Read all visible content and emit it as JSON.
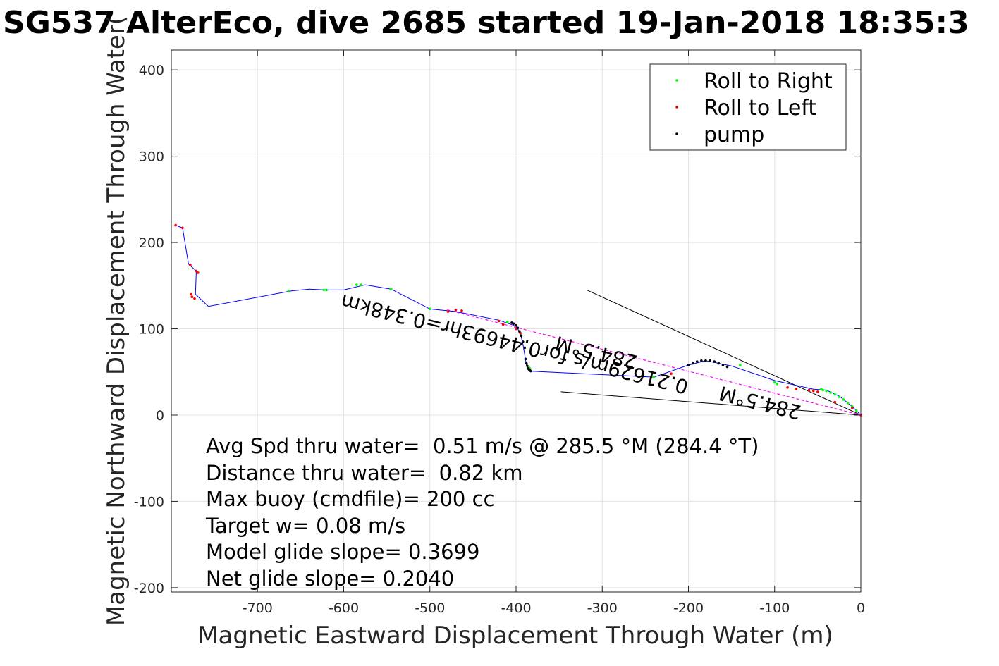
{
  "chart_data": {
    "type": "scatter",
    "title": "SG537 AlterEco, dive 2685 started 19-Jan-2018 18:35:3",
    "xlabel": "Magnetic Eastward Displacement Through Water (m)",
    "ylabel": "Magnetic Northward Displacement Through Water(",
    "xlim": [
      -800,
      0
    ],
    "ylim": [
      -205,
      423
    ],
    "xticks": [
      -700,
      -600,
      -500,
      -400,
      -300,
      -200,
      -100,
      0
    ],
    "yticks": [
      -200,
      -100,
      0,
      100,
      200,
      300,
      400
    ],
    "grid": true,
    "legend_position": "top-right",
    "legend": [
      {
        "label": "Roll to Right",
        "color": "#00ff00"
      },
      {
        "label": "Roll to Left",
        "color": "#ff0000"
      },
      {
        "label": "pump",
        "color": "#000000"
      }
    ],
    "series": [
      {
        "name": "Roll to Right",
        "color": "#00ff00",
        "x": [
          -664,
          -623,
          -620,
          -585,
          -580,
          -545,
          -500,
          -410,
          -385,
          -384,
          -240,
          -100,
          -97,
          -46,
          -44,
          -40,
          -35,
          -30,
          -25,
          -20,
          -15,
          -10,
          -5,
          -180,
          -140
        ],
        "y": [
          144,
          145,
          145,
          151,
          151,
          146,
          123,
          108,
          55,
          54,
          44,
          38,
          36,
          30,
          29,
          28,
          26,
          24,
          21,
          18,
          14,
          10,
          5,
          63,
          58
        ]
      },
      {
        "name": "Roll to Left",
        "color": "#ff0000",
        "x": [
          -795,
          -787,
          -778,
          -771,
          -769,
          -777,
          -776,
          -773,
          -479,
          -470,
          -463,
          -420,
          -415,
          -400,
          -395,
          -220,
          -85,
          -75,
          -60,
          -55,
          -50,
          -30,
          -10,
          0
        ],
        "y": [
          220,
          217,
          174,
          167,
          165,
          140,
          137,
          135,
          120,
          122,
          121,
          109,
          105,
          100,
          95,
          48,
          32,
          30,
          29,
          28,
          27,
          15,
          8,
          0
        ],
        "ypink_note": ""
      },
      {
        "name": "pump",
        "color": "#000000",
        "x": [
          -405,
          -403,
          -400,
          -398,
          -396,
          -394,
          -392,
          -390,
          -389,
          -388,
          -387,
          -386,
          -385,
          -384,
          -383,
          -200,
          -195,
          -190,
          -185,
          -180,
          -175,
          -170,
          -165,
          -160,
          -155
        ],
        "y": [
          107,
          106,
          104,
          101,
          97,
          92,
          85,
          78,
          65,
          60,
          57,
          54,
          53,
          52,
          51,
          58,
          60,
          62,
          63,
          63,
          63,
          62,
          60,
          58,
          56
        ]
      }
    ],
    "track": {
      "color": "#0000ff",
      "x": [
        0,
        -10,
        -25,
        -40,
        -55,
        -100,
        -150,
        -180,
        -200,
        -240,
        -385,
        -388,
        -392,
        -395,
        -400,
        -420,
        -470,
        -500,
        -545,
        -575,
        -600,
        -620,
        -640,
        -660,
        -757,
        -772,
        -771,
        -780,
        -787,
        -795
      ],
      "y": [
        0,
        10,
        22,
        29,
        30,
        40,
        57,
        63,
        58,
        44,
        51,
        58,
        82,
        95,
        103,
        110,
        120,
        123,
        146,
        151,
        145,
        145,
        146,
        144,
        126,
        140,
        167,
        175,
        217,
        220
      ]
    },
    "lines": [
      {
        "name": "upper-bound-line",
        "x": [
          -318,
          0
        ],
        "y": [
          145,
          0
        ],
        "color": "#000000"
      },
      {
        "name": "lower-bound-line",
        "x": [
          -348,
          0
        ],
        "y": [
          27,
          0
        ],
        "color": "#000000"
      },
      {
        "name": "current-line",
        "x": [
          -480,
          0
        ],
        "y": [
          122,
          0
        ],
        "color": "#ff00ff"
      }
    ],
    "rotated_annotations": [
      {
        "text": "0.21629m/s for0.44693hr=0.348km",
        "x": -400,
        "y": 90,
        "angle": 194
      },
      {
        "text": "284.5°M",
        "x": -305,
        "y": 80,
        "angle": 194
      },
      {
        "text": "284.5°M",
        "x": -115,
        "y": 22,
        "angle": 194
      }
    ],
    "annotations": [
      "Avg Spd thru water=  0.51 m/s @ 285.5 °M (284.4 °T)",
      "Distance thru water=  0.82 km",
      "Max buoy (cmdfile)= 200 cc",
      "Target w= 0.08 m/s",
      "Model glide slope= 0.3699",
      "Net glide slope= 0.2040"
    ]
  }
}
